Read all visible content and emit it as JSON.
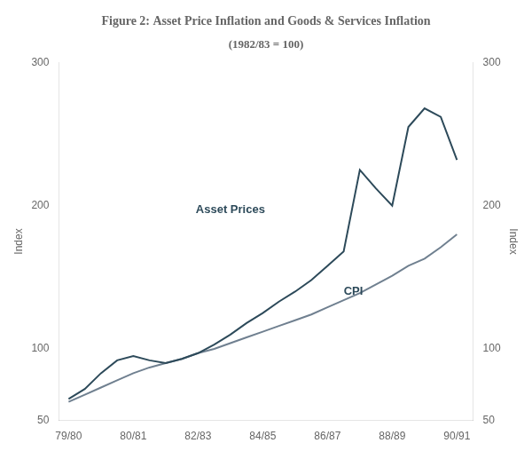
{
  "chart_data": {
    "type": "line",
    "title": "Figure 2: Asset Price Inflation and Goods & Services Inflation",
    "subtitle": "(1982/83 = 100)",
    "ylabel": "Index",
    "y2label": "Index",
    "x": [
      0,
      0.5,
      1.0,
      1.5,
      2.0,
      2.5,
      3.0,
      3.5,
      4.0,
      4.5,
      5.0,
      5.5,
      6.0,
      6.5,
      7.0,
      7.5,
      8.0,
      8.5,
      9.0,
      9.5,
      10.0,
      10.5,
      11.0,
      11.5,
      12.0
    ],
    "series": [
      {
        "color": "#2d4a5a",
        "values": [
          65,
          72,
          83,
          92,
          95,
          92,
          90,
          93,
          97,
          103,
          110,
          118,
          125,
          133,
          140,
          148,
          158,
          168,
          225,
          212,
          200,
          255,
          268,
          262,
          232
        ]
      },
      {
        "color": "#708090",
        "values": [
          63,
          68,
          73,
          78,
          83,
          87,
          90,
          93,
          97,
          100,
          104,
          108,
          112,
          116,
          120,
          124,
          129,
          134,
          139,
          145,
          151,
          158,
          163,
          171,
          180
        ]
      }
    ],
    "xlim": [
      -0.3,
      12.5
    ],
    "xticks": [
      {
        "value": 0,
        "label": "79/80"
      },
      {
        "value": 2,
        "label": "80/81"
      },
      {
        "value": 4,
        "label": "82/83"
      },
      {
        "value": 6,
        "label": "84/85"
      },
      {
        "value": 8,
        "label": "86/87"
      },
      {
        "value": 10,
        "label": "88/89"
      },
      {
        "value": 12,
        "label": "90/91"
      }
    ],
    "ylim": [
      50,
      300
    ],
    "yticks": [
      50,
      100,
      200,
      300
    ],
    "y2lim": [
      50,
      300
    ],
    "y2ticks": [
      50,
      100,
      200,
      300
    ],
    "grid": false,
    "annotations": [
      {
        "text": "Asset Prices",
        "x": 5.0,
        "y": 193,
        "color": "#2d4a5a"
      },
      {
        "text": "CPI",
        "x": 8.8,
        "y": 136,
        "color": "#2d4a5a"
      }
    ]
  }
}
